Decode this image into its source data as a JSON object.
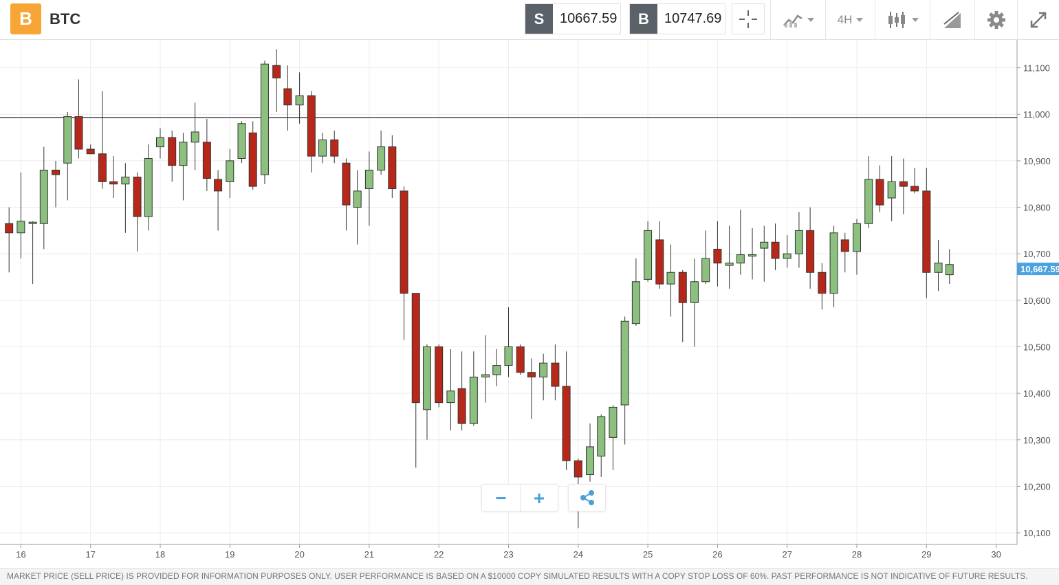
{
  "header": {
    "asset_icon": "bitcoin-icon",
    "asset_symbol": "B",
    "asset_name": "BTC",
    "sell_label": "S",
    "sell_price": "10667.59",
    "buy_label": "B",
    "buy_price": "10747.69",
    "timeframe": "4H",
    "toolbar_icons": [
      "crosshair-icon",
      "chart-type-icon",
      "timeframe-selector",
      "indicators-icon",
      "drawing-tools-icon",
      "settings-icon",
      "fullscreen-icon"
    ]
  },
  "controls": {
    "zoom_out": "−",
    "zoom_in": "+",
    "share_icon": "share-icon"
  },
  "disclaimer": "MARKET PRICE (SELL PRICE) IS PROVIDED FOR INFORMATION PURPOSES ONLY. USER PERFORMANCE IS BASED ON A $10000 COPY SIMULATED RESULTS WITH A COPY STOP LOSS OF 60%. PAST PERFORMANCE IS NOT INDICATIVE OF FUTURE RESULTS.",
  "chart_data": {
    "type": "candlestick",
    "colors": {
      "up": "#8cc07f",
      "down": "#b8281a",
      "wick": "#333333",
      "current_price_tag": "#4aa3df"
    },
    "x_ticks": [
      "16",
      "17",
      "18",
      "19",
      "20",
      "21",
      "22",
      "23",
      "24",
      "25",
      "26",
      "27",
      "28",
      "29",
      "30"
    ],
    "y_ticks": [
      "10,100",
      "10,200",
      "10,300",
      "10,400",
      "10,500",
      "10,600",
      "10,700",
      "10,800",
      "10,900",
      "11,000",
      "11,100"
    ],
    "ylim": [
      10075,
      11160
    ],
    "xlim": [
      15.7,
      30.3
    ],
    "grid": true,
    "horizontal_line": 10993,
    "current_price_label": "10,667.59",
    "current_price": 10667.59,
    "candles": [
      {
        "t": 15.83,
        "o": 10765,
        "h": 10800,
        "l": 10660,
        "c": 10745
      },
      {
        "t": 16.0,
        "o": 10745,
        "h": 10875,
        "l": 10690,
        "c": 10770
      },
      {
        "t": 16.17,
        "o": 10765,
        "h": 10770,
        "l": 10635,
        "c": 10768
      },
      {
        "t": 16.33,
        "o": 10765,
        "h": 10930,
        "l": 10710,
        "c": 10880
      },
      {
        "t": 16.5,
        "o": 10880,
        "h": 10900,
        "l": 10800,
        "c": 10870
      },
      {
        "t": 16.67,
        "o": 10895,
        "h": 11005,
        "l": 10815,
        "c": 10995
      },
      {
        "t": 16.83,
        "o": 10995,
        "h": 11075,
        "l": 10905,
        "c": 10925
      },
      {
        "t": 17.0,
        "o": 10925,
        "h": 10935,
        "l": 10915,
        "c": 10915
      },
      {
        "t": 17.17,
        "o": 10915,
        "h": 11050,
        "l": 10840,
        "c": 10855
      },
      {
        "t": 17.33,
        "o": 10855,
        "h": 10910,
        "l": 10820,
        "c": 10850
      },
      {
        "t": 17.5,
        "o": 10850,
        "h": 10895,
        "l": 10745,
        "c": 10865
      },
      {
        "t": 17.67,
        "o": 10865,
        "h": 10875,
        "l": 10705,
        "c": 10780
      },
      {
        "t": 17.83,
        "o": 10780,
        "h": 10935,
        "l": 10750,
        "c": 10905
      },
      {
        "t": 18.0,
        "o": 10930,
        "h": 10970,
        "l": 10905,
        "c": 10950
      },
      {
        "t": 18.17,
        "o": 10950,
        "h": 10965,
        "l": 10855,
        "c": 10890
      },
      {
        "t": 18.33,
        "o": 10890,
        "h": 10960,
        "l": 10815,
        "c": 10940
      },
      {
        "t": 18.5,
        "o": 10940,
        "h": 11025,
        "l": 10880,
        "c": 10962
      },
      {
        "t": 18.67,
        "o": 10940,
        "h": 10990,
        "l": 10835,
        "c": 10862
      },
      {
        "t": 18.83,
        "o": 10860,
        "h": 10880,
        "l": 10750,
        "c": 10835
      },
      {
        "t": 19.0,
        "o": 10855,
        "h": 10925,
        "l": 10820,
        "c": 10900
      },
      {
        "t": 19.17,
        "o": 10905,
        "h": 10985,
        "l": 10895,
        "c": 10980
      },
      {
        "t": 19.33,
        "o": 10960,
        "h": 10985,
        "l": 10838,
        "c": 10845
      },
      {
        "t": 19.5,
        "o": 10870,
        "h": 11115,
        "l": 10850,
        "c": 11108
      },
      {
        "t": 19.67,
        "o": 11105,
        "h": 11140,
        "l": 11005,
        "c": 11078
      },
      {
        "t": 19.83,
        "o": 11055,
        "h": 11105,
        "l": 10965,
        "c": 11020
      },
      {
        "t": 20.0,
        "o": 11020,
        "h": 11090,
        "l": 10980,
        "c": 11040
      },
      {
        "t": 20.17,
        "o": 11040,
        "h": 11050,
        "l": 10875,
        "c": 10910
      },
      {
        "t": 20.33,
        "o": 10910,
        "h": 10960,
        "l": 10895,
        "c": 10945
      },
      {
        "t": 20.5,
        "o": 10945,
        "h": 10965,
        "l": 10895,
        "c": 10910
      },
      {
        "t": 20.67,
        "o": 10895,
        "h": 10905,
        "l": 10750,
        "c": 10805
      },
      {
        "t": 20.83,
        "o": 10800,
        "h": 10880,
        "l": 10720,
        "c": 10835
      },
      {
        "t": 21.0,
        "o": 10840,
        "h": 10920,
        "l": 10760,
        "c": 10880
      },
      {
        "t": 21.17,
        "o": 10880,
        "h": 10965,
        "l": 10870,
        "c": 10930
      },
      {
        "t": 21.33,
        "o": 10930,
        "h": 10955,
        "l": 10820,
        "c": 10840
      },
      {
        "t": 21.5,
        "o": 10835,
        "h": 10845,
        "l": 10515,
        "c": 10615
      },
      {
        "t": 21.67,
        "o": 10615,
        "h": 10615,
        "l": 10240,
        "c": 10380
      },
      {
        "t": 21.83,
        "o": 10365,
        "h": 10505,
        "l": 10300,
        "c": 10500
      },
      {
        "t": 22.0,
        "o": 10500,
        "h": 10505,
        "l": 10370,
        "c": 10380
      },
      {
        "t": 22.17,
        "o": 10380,
        "h": 10495,
        "l": 10320,
        "c": 10405
      },
      {
        "t": 22.33,
        "o": 10410,
        "h": 10490,
        "l": 10320,
        "c": 10335
      },
      {
        "t": 22.5,
        "o": 10335,
        "h": 10490,
        "l": 10330,
        "c": 10435
      },
      {
        "t": 22.67,
        "o": 10435,
        "h": 10525,
        "l": 10380,
        "c": 10440
      },
      {
        "t": 22.83,
        "o": 10440,
        "h": 10495,
        "l": 10415,
        "c": 10460
      },
      {
        "t": 23.0,
        "o": 10460,
        "h": 10585,
        "l": 10435,
        "c": 10500
      },
      {
        "t": 23.17,
        "o": 10500,
        "h": 10505,
        "l": 10440,
        "c": 10445
      },
      {
        "t": 23.33,
        "o": 10445,
        "h": 10475,
        "l": 10345,
        "c": 10435
      },
      {
        "t": 23.5,
        "o": 10435,
        "h": 10485,
        "l": 10385,
        "c": 10465
      },
      {
        "t": 23.67,
        "o": 10465,
        "h": 10505,
        "l": 10385,
        "c": 10415
      },
      {
        "t": 23.83,
        "o": 10415,
        "h": 10490,
        "l": 10235,
        "c": 10255
      },
      {
        "t": 24.0,
        "o": 10255,
        "h": 10260,
        "l": 10110,
        "c": 10220
      },
      {
        "t": 24.17,
        "o": 10225,
        "h": 10335,
        "l": 10210,
        "c": 10285
      },
      {
        "t": 24.33,
        "o": 10265,
        "h": 10355,
        "l": 10220,
        "c": 10350
      },
      {
        "t": 24.5,
        "o": 10305,
        "h": 10375,
        "l": 10235,
        "c": 10370
      },
      {
        "t": 24.67,
        "o": 10375,
        "h": 10565,
        "l": 10290,
        "c": 10555
      },
      {
        "t": 24.83,
        "o": 10550,
        "h": 10690,
        "l": 10545,
        "c": 10640
      },
      {
        "t": 25.0,
        "o": 10645,
        "h": 10770,
        "l": 10640,
        "c": 10750
      },
      {
        "t": 25.17,
        "o": 10730,
        "h": 10770,
        "l": 10625,
        "c": 10635
      },
      {
        "t": 25.33,
        "o": 10635,
        "h": 10720,
        "l": 10565,
        "c": 10660
      },
      {
        "t": 25.5,
        "o": 10660,
        "h": 10665,
        "l": 10510,
        "c": 10595
      },
      {
        "t": 25.67,
        "o": 10595,
        "h": 10690,
        "l": 10500,
        "c": 10640
      },
      {
        "t": 25.83,
        "o": 10640,
        "h": 10750,
        "l": 10635,
        "c": 10690
      },
      {
        "t": 26.0,
        "o": 10710,
        "h": 10770,
        "l": 10630,
        "c": 10680
      },
      {
        "t": 26.17,
        "o": 10675,
        "h": 10760,
        "l": 10625,
        "c": 10680
      },
      {
        "t": 26.33,
        "o": 10680,
        "h": 10795,
        "l": 10655,
        "c": 10698
      },
      {
        "t": 26.5,
        "o": 10695,
        "h": 10755,
        "l": 10645,
        "c": 10698
      },
      {
        "t": 26.67,
        "o": 10712,
        "h": 10760,
        "l": 10640,
        "c": 10725
      },
      {
        "t": 26.83,
        "o": 10725,
        "h": 10765,
        "l": 10665,
        "c": 10690
      },
      {
        "t": 27.0,
        "o": 10690,
        "h": 10740,
        "l": 10670,
        "c": 10700
      },
      {
        "t": 27.17,
        "o": 10700,
        "h": 10790,
        "l": 10670,
        "c": 10750
      },
      {
        "t": 27.33,
        "o": 10750,
        "h": 10800,
        "l": 10625,
        "c": 10660
      },
      {
        "t": 27.5,
        "o": 10660,
        "h": 10680,
        "l": 10580,
        "c": 10615
      },
      {
        "t": 27.67,
        "o": 10615,
        "h": 10760,
        "l": 10585,
        "c": 10745
      },
      {
        "t": 27.83,
        "o": 10730,
        "h": 10745,
        "l": 10660,
        "c": 10705
      },
      {
        "t": 28.0,
        "o": 10705,
        "h": 10775,
        "l": 10655,
        "c": 10765
      },
      {
        "t": 28.17,
        "o": 10765,
        "h": 10910,
        "l": 10755,
        "c": 10860
      },
      {
        "t": 28.33,
        "o": 10860,
        "h": 10890,
        "l": 10790,
        "c": 10805
      },
      {
        "t": 28.5,
        "o": 10820,
        "h": 10910,
        "l": 10770,
        "c": 10855
      },
      {
        "t": 28.67,
        "o": 10855,
        "h": 10905,
        "l": 10785,
        "c": 10845
      },
      {
        "t": 28.83,
        "o": 10845,
        "h": 10885,
        "l": 10830,
        "c": 10835
      },
      {
        "t": 29.0,
        "o": 10835,
        "h": 10885,
        "l": 10605,
        "c": 10660
      },
      {
        "t": 29.17,
        "o": 10660,
        "h": 10730,
        "l": 10620,
        "c": 10680
      },
      {
        "t": 29.33,
        "o": 10655,
        "h": 10710,
        "l": 10635,
        "c": 10677
      }
    ]
  }
}
